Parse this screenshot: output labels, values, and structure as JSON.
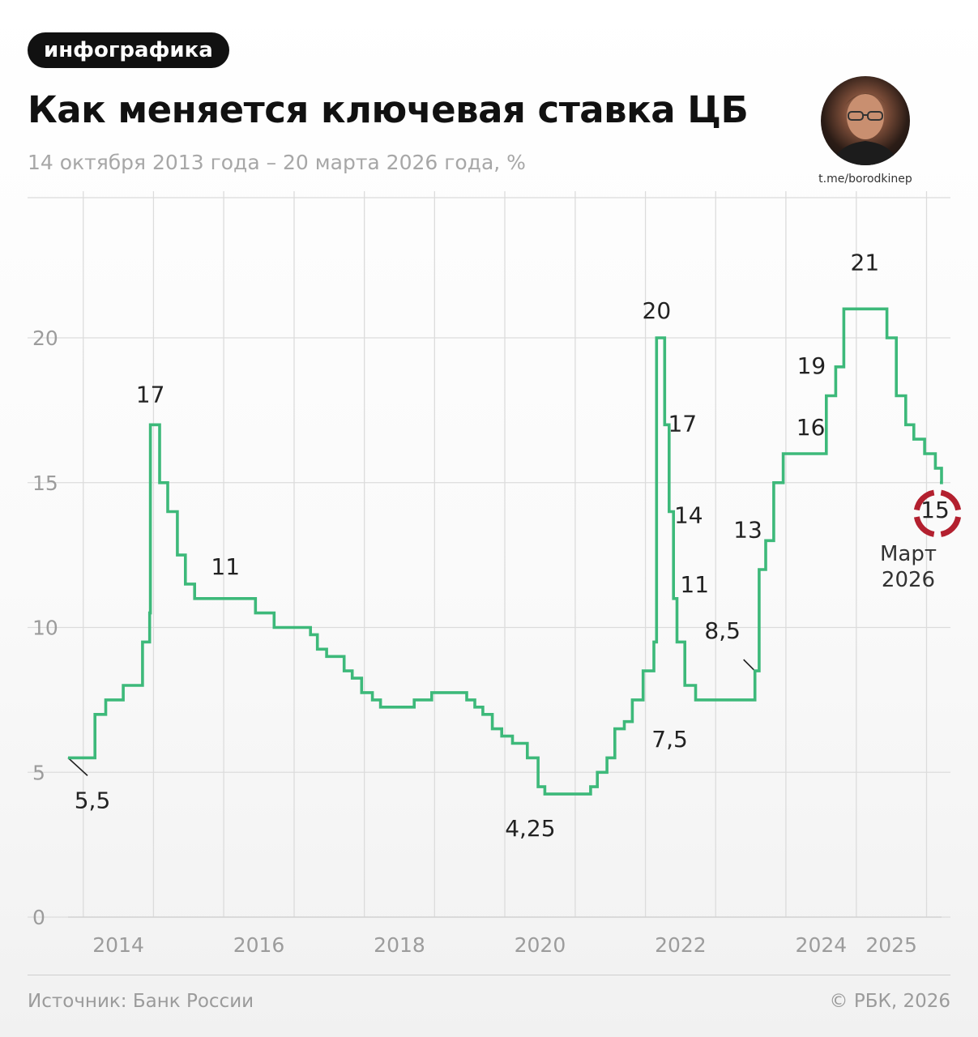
{
  "header": {
    "tag_label": "инфографика",
    "title": "Как меняется ключевая ставка ЦБ",
    "subtitle": "14 октября 2013 года – 20 марта 2026 года, %",
    "author_handle": "t.me/borodkinep"
  },
  "footer": {
    "source": "Источник: Банк России",
    "copyright": "© РБК, 2026"
  },
  "colors": {
    "line": "#3db97a",
    "grid": "#dcdcdc",
    "axis_text": "#9c9c9c",
    "annotation_text": "#222222",
    "highlight_mark": "#b3202f"
  },
  "chart_data": {
    "type": "line",
    "step": true,
    "title": "Как меняется ключевая ставка ЦБ",
    "subtitle": "14 октября 2013 года – 20 марта 2026 года, %",
    "ylim": [
      0,
      25
    ],
    "y_ticks": [
      "0",
      "5",
      "10",
      "15",
      "20"
    ],
    "x_tick_labels": [
      "2014",
      "2016",
      "2018",
      "2020",
      "2022",
      "2024",
      "2025"
    ],
    "grid": true,
    "legend": "none",
    "x": [
      "2013-10-14",
      "2014-03-03",
      "2014-04-28",
      "2014-07-28",
      "2014-11-05",
      "2014-12-12",
      "2014-12-16",
      "2015-02-02",
      "2015-03-16",
      "2015-05-05",
      "2015-06-16",
      "2015-08-03",
      "2016-06-14",
      "2016-09-19",
      "2017-03-27",
      "2017-05-02",
      "2017-06-19",
      "2017-09-18",
      "2017-10-30",
      "2017-12-18",
      "2018-02-12",
      "2018-03-26",
      "2018-09-17",
      "2018-12-17",
      "2019-06-17",
      "2019-07-29",
      "2019-09-09",
      "2019-10-28",
      "2019-12-16",
      "2020-02-10",
      "2020-04-27",
      "2020-06-22",
      "2020-07-27",
      "2021-03-22",
      "2021-04-26",
      "2021-06-15",
      "2021-07-26",
      "2021-09-13",
      "2021-10-25",
      "2021-12-20",
      "2022-02-14",
      "2022-02-28",
      "2022-04-11",
      "2022-05-04",
      "2022-05-27",
      "2022-06-14",
      "2022-07-25",
      "2022-09-19",
      "2023-07-24",
      "2023-08-15",
      "2023-09-18",
      "2023-10-30",
      "2023-12-18",
      "2024-07-29",
      "2024-09-16",
      "2024-10-28",
      "2025-06-09",
      "2025-07-28",
      "2025-09-15",
      "2025-10-27",
      "2025-12-22",
      "2026-02-16",
      "2026-03-20"
    ],
    "values": [
      5.5,
      7,
      7.5,
      8,
      9.5,
      10.5,
      17,
      15,
      14,
      12.5,
      11.5,
      11,
      10.5,
      10,
      9.75,
      9.25,
      9,
      8.5,
      8.25,
      7.75,
      7.5,
      7.25,
      7.5,
      7.75,
      7.5,
      7.25,
      7,
      6.5,
      6.25,
      6,
      5.5,
      4.5,
      4.25,
      4.5,
      5,
      5.5,
      6.5,
      6.75,
      7.5,
      8.5,
      9.5,
      20,
      17,
      14,
      11,
      9.5,
      8,
      7.5,
      8.5,
      12,
      13,
      15,
      16,
      18,
      19,
      21,
      20,
      18,
      17,
      16.5,
      16,
      15.5,
      15
    ],
    "annotations": [
      {
        "text": "5,5",
        "x": "2013-10-14",
        "y": 5.5
      },
      {
        "text": "17",
        "x": "2014-12-16",
        "y": 17
      },
      {
        "text": "11",
        "x": "2015-08-03",
        "y": 11
      },
      {
        "text": "4,25",
        "x": "2020-07-27",
        "y": 4.25
      },
      {
        "text": "20",
        "x": "2022-02-28",
        "y": 20
      },
      {
        "text": "17",
        "x": "2022-04-11",
        "y": 17
      },
      {
        "text": "14",
        "x": "2022-05-04",
        "y": 14
      },
      {
        "text": "11",
        "x": "2022-05-27",
        "y": 11
      },
      {
        "text": "7,5",
        "x": "2022-09-19",
        "y": 7.5
      },
      {
        "text": "8,5",
        "x": "2023-07-24",
        "y": 8.5
      },
      {
        "text": "13",
        "x": "2023-09-18",
        "y": 13
      },
      {
        "text": "16",
        "x": "2023-12-18",
        "y": 16
      },
      {
        "text": "19",
        "x": "2024-09-16",
        "y": 19
      },
      {
        "text": "21",
        "x": "2024-10-28",
        "y": 21
      },
      {
        "text": "15",
        "x": "2026-03-20",
        "y": 15
      }
    ],
    "callout": {
      "text_line1": "Март",
      "text_line2": "2026"
    }
  }
}
